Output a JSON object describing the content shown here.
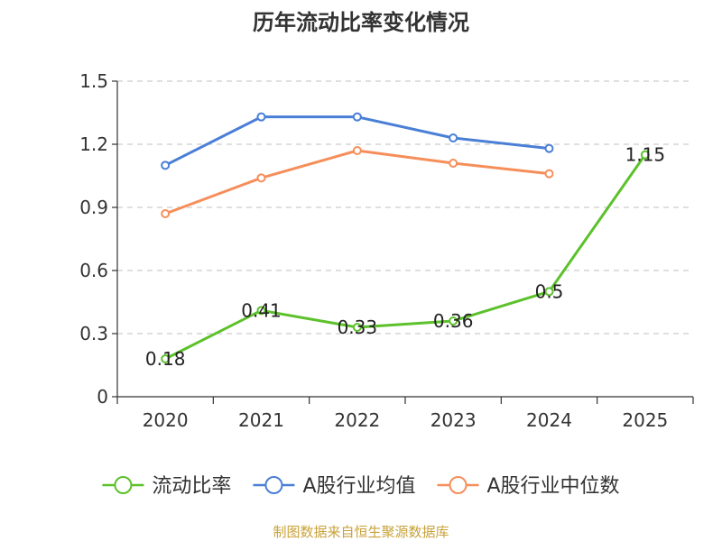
{
  "chart_data": {
    "type": "line",
    "title": "历年流动比率变化情况",
    "categories": [
      "2020",
      "2021",
      "2022",
      "2023",
      "2024",
      "2025"
    ],
    "ylim": [
      0,
      1.5
    ],
    "yticks": [
      "0",
      "0.3",
      "0.6",
      "0.9",
      "1.2",
      "1.5"
    ],
    "grid": true,
    "legend_position": "bottom",
    "series": [
      {
        "name": "流动比率",
        "color": "#5cc12b",
        "values": [
          0.18,
          0.41,
          0.33,
          0.36,
          0.5,
          1.15
        ],
        "labels": [
          "0.18",
          "0.41",
          "0.33",
          "0.36",
          "0.5",
          "1.15"
        ],
        "show_labels": true
      },
      {
        "name": "A股行业均值",
        "color": "#4a7fd6",
        "values": [
          1.1,
          1.33,
          1.33,
          1.23,
          1.18,
          null
        ],
        "show_labels": false
      },
      {
        "name": "A股行业中位数",
        "color": "#f68e5a",
        "values": [
          0.87,
          1.04,
          1.17,
          1.11,
          1.06,
          null
        ],
        "show_labels": false
      }
    ],
    "source": "制图数据来自恒生聚源数据库"
  }
}
